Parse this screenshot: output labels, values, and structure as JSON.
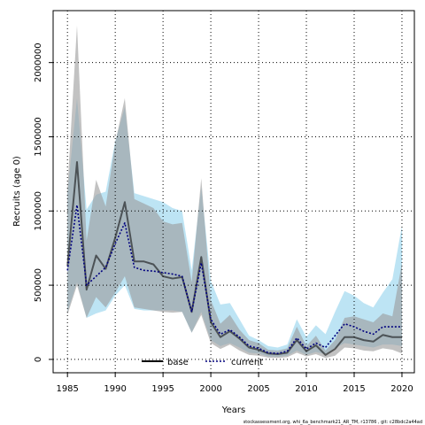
{
  "chart_data": {
    "type": "line",
    "xlabel": "Years",
    "ylabel": "Recruits (age 0)",
    "xlim": [
      1983.5,
      2021.3
    ],
    "ylim": [
      -90000,
      2350000
    ],
    "x_ticks": [
      1985,
      1990,
      1995,
      2000,
      2005,
      2010,
      2015,
      2020
    ],
    "x_tick_labels": [
      "1985",
      "1990",
      "1995",
      "2000",
      "2005",
      "2010",
      "2015",
      "2020"
    ],
    "y_ticks": [
      0,
      500000,
      1000000,
      1500000,
      2000000
    ],
    "y_tick_labels": [
      "0",
      "500000",
      "1000000",
      "1500000",
      "2000000"
    ],
    "grid": true,
    "legend_placement": "bottom-center",
    "footer": "stockassessment.org, whi_6a_benchmark21_AR_TM, r13786 , git: c28bdc2a44ad",
    "x": [
      1985,
      1986,
      1987,
      1988,
      1989,
      1990,
      1991,
      1992,
      1993,
      1994,
      1995,
      1996,
      1997,
      1998,
      1999,
      2000,
      2001,
      2002,
      2003,
      2004,
      2005,
      2006,
      2007,
      2008,
      2009,
      2010,
      2011,
      2012,
      2013,
      2014,
      2015,
      2016,
      2017,
      2018,
      2019,
      2020
    ],
    "series": [
      {
        "name": "base",
        "color": "#000000",
        "band_color": "#999999",
        "values": [
          630000,
          1330000,
          470000,
          700000,
          610000,
          820000,
          1060000,
          660000,
          660000,
          640000,
          560000,
          545000,
          555000,
          320000,
          690000,
          250000,
          150000,
          190000,
          140000,
          80000,
          65000,
          40000,
          35000,
          45000,
          130000,
          55000,
          95000,
          30000,
          70000,
          150000,
          150000,
          130000,
          120000,
          165000,
          150000,
          150000
        ],
        "lower": [
          300000,
          500000,
          280000,
          420000,
          350000,
          450000,
          560000,
          350000,
          340000,
          330000,
          320000,
          315000,
          320000,
          180000,
          300000,
          110000,
          70000,
          100000,
          60000,
          30000,
          25000,
          12000,
          10000,
          15000,
          45000,
          20000,
          35000,
          10000,
          25000,
          80000,
          75000,
          60000,
          55000,
          75000,
          65000,
          40000
        ],
        "upper": [
          1150000,
          2250000,
          800000,
          1210000,
          1030000,
          1460000,
          1760000,
          1080000,
          1050000,
          1020000,
          930000,
          910000,
          920000,
          520000,
          1220000,
          400000,
          240000,
          300000,
          200000,
          130000,
          110000,
          65000,
          60000,
          75000,
          220000,
          90000,
          160000,
          60000,
          130000,
          280000,
          290000,
          270000,
          250000,
          310000,
          290000,
          650000
        ]
      },
      {
        "name": "current",
        "color": "#00007f",
        "band_color": "#87ceeb",
        "values": [
          600000,
          1040000,
          500000,
          560000,
          620000,
          780000,
          920000,
          620000,
          600000,
          595000,
          585000,
          575000,
          560000,
          320000,
          650000,
          270000,
          170000,
          200000,
          150000,
          90000,
          75000,
          45000,
          40000,
          55000,
          145000,
          70000,
          110000,
          80000,
          160000,
          240000,
          220000,
          190000,
          170000,
          220000,
          220000,
          220000
        ],
        "lower": [
          320000,
          520000,
          280000,
          310000,
          330000,
          430000,
          500000,
          340000,
          330000,
          330000,
          330000,
          330000,
          320000,
          180000,
          320000,
          130000,
          90000,
          110000,
          80000,
          45000,
          40000,
          20000,
          18000,
          25000,
          60000,
          30000,
          50000,
          35000,
          75000,
          110000,
          100000,
          90000,
          80000,
          100000,
          100000,
          90000
        ],
        "upper": [
          1120000,
          1760000,
          1010000,
          1110000,
          1130000,
          1470000,
          1700000,
          1120000,
          1100000,
          1080000,
          1060000,
          1020000,
          1000000,
          600000,
          1160000,
          530000,
          370000,
          380000,
          270000,
          160000,
          130000,
          90000,
          80000,
          100000,
          270000,
          150000,
          230000,
          170000,
          320000,
          460000,
          430000,
          380000,
          350000,
          450000,
          540000,
          900000
        ]
      }
    ]
  }
}
